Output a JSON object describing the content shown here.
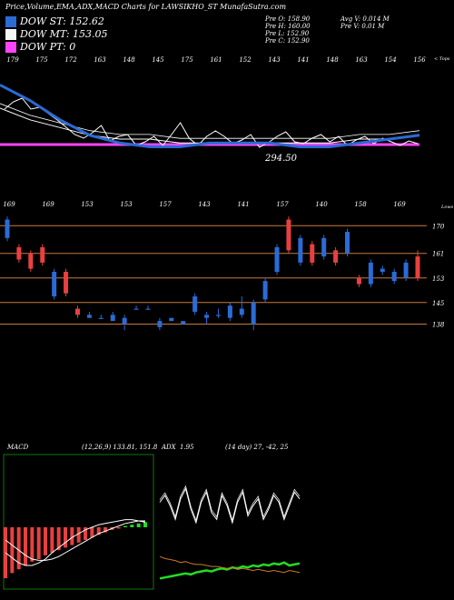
{
  "header": {
    "title": "Price,Volume,EMA,ADX,MACD Charts for LAWSIKHO_ST MunafaSutra.com"
  },
  "legend": [
    {
      "label": "DOW ST: 152.62",
      "color": "#2a6bd6"
    },
    {
      "label": "DOW MT: 153.05",
      "color": "#f5f5f5"
    },
    {
      "label": "DOW PT: 0",
      "color": "#ff44ff"
    }
  ],
  "ohlc": {
    "open": "Pre   O: 158.90",
    "high": "Pre   H: 160.00",
    "low": "Pre   L: 152.90",
    "close": "Pre   C: 152.90",
    "avg_volume": "Avg V: 0.014  M",
    "volume": "Pre   V: 0.01 M"
  },
  "price_panel": {
    "top_labels": [
      "179",
      "175",
      "172",
      "163",
      "148",
      "145",
      "175",
      "161",
      "152",
      "143",
      "141",
      "148",
      "163",
      "154",
      "156"
    ],
    "corner_label": "< Tops",
    "last_value": "294.50",
    "colors": {
      "ema_short": "#2a6bd6",
      "ema_long": "#ff44ff",
      "price": "#ffffff"
    }
  },
  "candle_panel": {
    "top_labels": [
      "169",
      "169",
      "153",
      "153",
      "157",
      "143",
      "141",
      "157",
      "140",
      "158",
      "169"
    ],
    "levels": [
      "170",
      "161",
      "153",
      "145",
      "138"
    ],
    "corner_label": "Lows",
    "colors": {
      "up": "#2a6bd6",
      "down": "#e84040",
      "level": "#c87a3a"
    }
  },
  "macd_panel": {
    "label": "MACD",
    "values": "(12,26,9) 133.81, 151.8"
  },
  "adx_panel": {
    "label": "ADX",
    "values": "1.95",
    "params": "(14 day) 27, -42, 25"
  },
  "chart_data": [
    {
      "type": "line",
      "title": "DOW",
      "x_labels": [
        "179",
        "175",
        "172",
        "163",
        "148",
        "145",
        "175",
        "161",
        "152",
        "143",
        "141",
        "148",
        "163",
        "154",
        "156"
      ],
      "series": [
        {
          "name": "DOW ST",
          "values": [
            166,
            162,
            157,
            153,
            151,
            150,
            150,
            151,
            151,
            151,
            150,
            150,
            151,
            152,
            153
          ]
        },
        {
          "name": "DOW MT",
          "values": [
            160,
            157,
            155,
            153,
            152,
            152,
            151,
            151,
            151,
            151,
            151,
            151,
            152,
            152,
            153
          ]
        }
      ]
    },
    {
      "type": "bar",
      "levels": [
        170,
        161,
        153,
        145,
        138
      ],
      "candles": [
        {
          "o": 166,
          "c": 172,
          "h": 173,
          "l": 165,
          "dir": "up"
        },
        {
          "o": 163,
          "c": 159,
          "h": 164,
          "l": 158,
          "dir": "down"
        },
        {
          "o": 161,
          "c": 156,
          "h": 162,
          "l": 155,
          "dir": "down"
        },
        {
          "o": 163,
          "c": 158,
          "h": 164,
          "l": 157,
          "dir": "down"
        },
        {
          "o": 147,
          "c": 155,
          "h": 156,
          "l": 146,
          "dir": "up"
        },
        {
          "o": 155,
          "c": 148,
          "h": 156,
          "l": 147,
          "dir": "down"
        },
        {
          "o": 143,
          "c": 141,
          "h": 144,
          "l": 140,
          "dir": "down"
        },
        {
          "o": 140,
          "c": 141,
          "h": 142,
          "l": 140,
          "dir": "up"
        },
        {
          "o": 140,
          "c": 140,
          "h": 141,
          "l": 140,
          "dir": "up"
        },
        {
          "o": 139,
          "c": 141,
          "h": 142,
          "l": 139,
          "dir": "up"
        },
        {
          "o": 138,
          "c": 140,
          "h": 141,
          "l": 136,
          "dir": "up"
        },
        {
          "o": 143,
          "c": 143,
          "h": 144,
          "l": 143,
          "dir": "up"
        },
        {
          "o": 143,
          "c": 143,
          "h": 144,
          "l": 143,
          "dir": "up"
        },
        {
          "o": 137,
          "c": 139,
          "h": 140,
          "l": 136,
          "dir": "up"
        },
        {
          "o": 139,
          "c": 140,
          "h": 140,
          "l": 139,
          "dir": "up"
        },
        {
          "o": 138,
          "c": 139,
          "h": 139,
          "l": 138,
          "dir": "up"
        },
        {
          "o": 142,
          "c": 147,
          "h": 148,
          "l": 141,
          "dir": "up"
        },
        {
          "o": 140,
          "c": 141,
          "h": 142,
          "l": 138,
          "dir": "up"
        },
        {
          "o": 141,
          "c": 141,
          "h": 143,
          "l": 140,
          "dir": "up"
        },
        {
          "o": 140,
          "c": 144,
          "h": 145,
          "l": 139,
          "dir": "up"
        },
        {
          "o": 141,
          "c": 143,
          "h": 147,
          "l": 140,
          "dir": "up"
        },
        {
          "o": 138,
          "c": 145,
          "h": 146,
          "l": 136,
          "dir": "up"
        },
        {
          "o": 146,
          "c": 152,
          "h": 153,
          "l": 145,
          "dir": "up"
        },
        {
          "o": 155,
          "c": 163,
          "h": 164,
          "l": 154,
          "dir": "up"
        },
        {
          "o": 172,
          "c": 162,
          "h": 173,
          "l": 161,
          "dir": "down"
        },
        {
          "o": 158,
          "c": 166,
          "h": 167,
          "l": 157,
          "dir": "up"
        },
        {
          "o": 164,
          "c": 158,
          "h": 165,
          "l": 157,
          "dir": "down"
        },
        {
          "o": 160,
          "c": 166,
          "h": 167,
          "l": 159,
          "dir": "up"
        },
        {
          "o": 162,
          "c": 158,
          "h": 163,
          "l": 157,
          "dir": "down"
        },
        {
          "o": 161,
          "c": 168,
          "h": 169,
          "l": 160,
          "dir": "up"
        },
        {
          "o": 153,
          "c": 151,
          "h": 154,
          "l": 150,
          "dir": "down"
        },
        {
          "o": 151,
          "c": 158,
          "h": 159,
          "l": 150,
          "dir": "up"
        },
        {
          "o": 155,
          "c": 156,
          "h": 157,
          "l": 154,
          "dir": "up"
        },
        {
          "o": 152,
          "c": 155,
          "h": 156,
          "l": 151,
          "dir": "up"
        },
        {
          "o": 153,
          "c": 158,
          "h": 159,
          "l": 152,
          "dir": "up"
        },
        {
          "o": 160,
          "c": 153,
          "h": 162,
          "l": 152,
          "dir": "down"
        }
      ]
    },
    {
      "type": "bar",
      "title": "MACD (12,26,9) 133.81, 151.8",
      "histogram": [
        -40,
        -36,
        -33,
        -30,
        -27,
        -25,
        -22,
        -20,
        -18,
        -16,
        -14,
        -12,
        -10,
        -8,
        -6,
        -4,
        -2,
        -1,
        1,
        2,
        3,
        4
      ],
      "macd": [
        -20,
        -24,
        -28,
        -30,
        -30,
        -28,
        -25,
        -20,
        -16,
        -12,
        -8,
        -5,
        -2,
        0,
        2,
        3,
        4,
        5,
        6,
        6,
        5,
        4
      ],
      "signal": [
        -10,
        -14,
        -18,
        -22,
        -25,
        -26,
        -26,
        -25,
        -23,
        -20,
        -17,
        -14,
        -11,
        -8,
        -5,
        -3,
        -1,
        1,
        3,
        4,
        5,
        5
      ]
    },
    {
      "type": "line",
      "title": "ADX 1.95 (14 day) 27, -42, 25",
      "series": [
        {
          "name": "ADX",
          "values": [
            40,
            44,
            38,
            30,
            42,
            48,
            36,
            28,
            40,
            46,
            34,
            30,
            44,
            38,
            28,
            40,
            46,
            32,
            38,
            42,
            30,
            36,
            44,
            40,
            30,
            38,
            46,
            42
          ]
        },
        {
          "name": "+DI",
          "values": [
            8,
            9,
            10,
            11,
            12,
            13,
            12,
            14,
            15,
            16,
            15,
            17,
            18,
            17,
            19,
            18,
            20,
            19,
            21,
            20,
            22,
            21,
            23,
            22,
            24,
            21,
            22,
            23
          ]
        },
        {
          "name": "-DI",
          "values": [
            30,
            28,
            27,
            26,
            24,
            25,
            23,
            22,
            22,
            21,
            20,
            20,
            19,
            18,
            19,
            17,
            18,
            17,
            16,
            17,
            16,
            15,
            16,
            15,
            14,
            16,
            15,
            14
          ]
        }
      ]
    }
  ]
}
